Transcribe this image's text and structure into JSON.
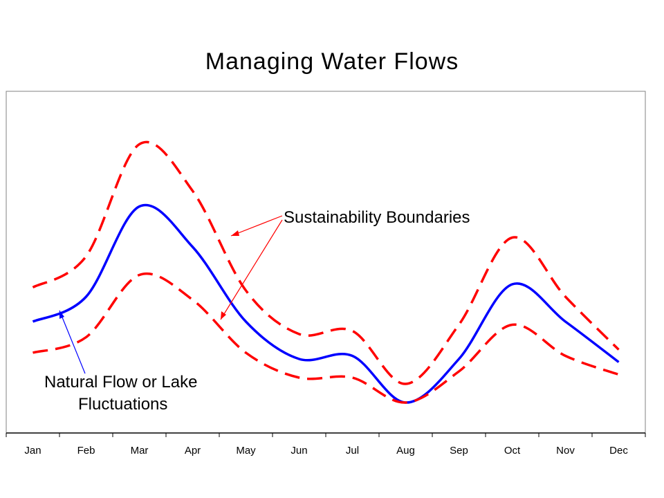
{
  "chart_data": {
    "type": "line",
    "title": "Managing Water Flows",
    "categories": [
      "Jan",
      "Feb",
      "Mar",
      "Apr",
      "May",
      "Jun",
      "Jul",
      "Aug",
      "Sep",
      "Oct",
      "Nov",
      "Dec"
    ],
    "ylim": [
      0,
      100
    ],
    "grid": false,
    "colors": {
      "natural": "#0000ff",
      "boundary": "#ff0000",
      "frame": "#808080"
    },
    "series": [
      {
        "key": "upper",
        "values": [
          41,
          51,
          87,
          72,
          40,
          26,
          27,
          10,
          29,
          57,
          38,
          21
        ],
        "style": "dashed"
      },
      {
        "key": "natural",
        "values": [
          30,
          38,
          67,
          54,
          30,
          18,
          19,
          4,
          18,
          42,
          30,
          17
        ],
        "style": "solid"
      },
      {
        "key": "lower",
        "values": [
          20,
          25,
          45,
          37,
          20,
          12,
          12,
          4,
          14,
          29,
          19,
          13
        ],
        "style": "dashed"
      }
    ],
    "annotations": {
      "boundaries": "Sustainability Boundaries",
      "natural_line1": "Natural Flow or Lake",
      "natural_line2": "Fluctuations"
    }
  }
}
